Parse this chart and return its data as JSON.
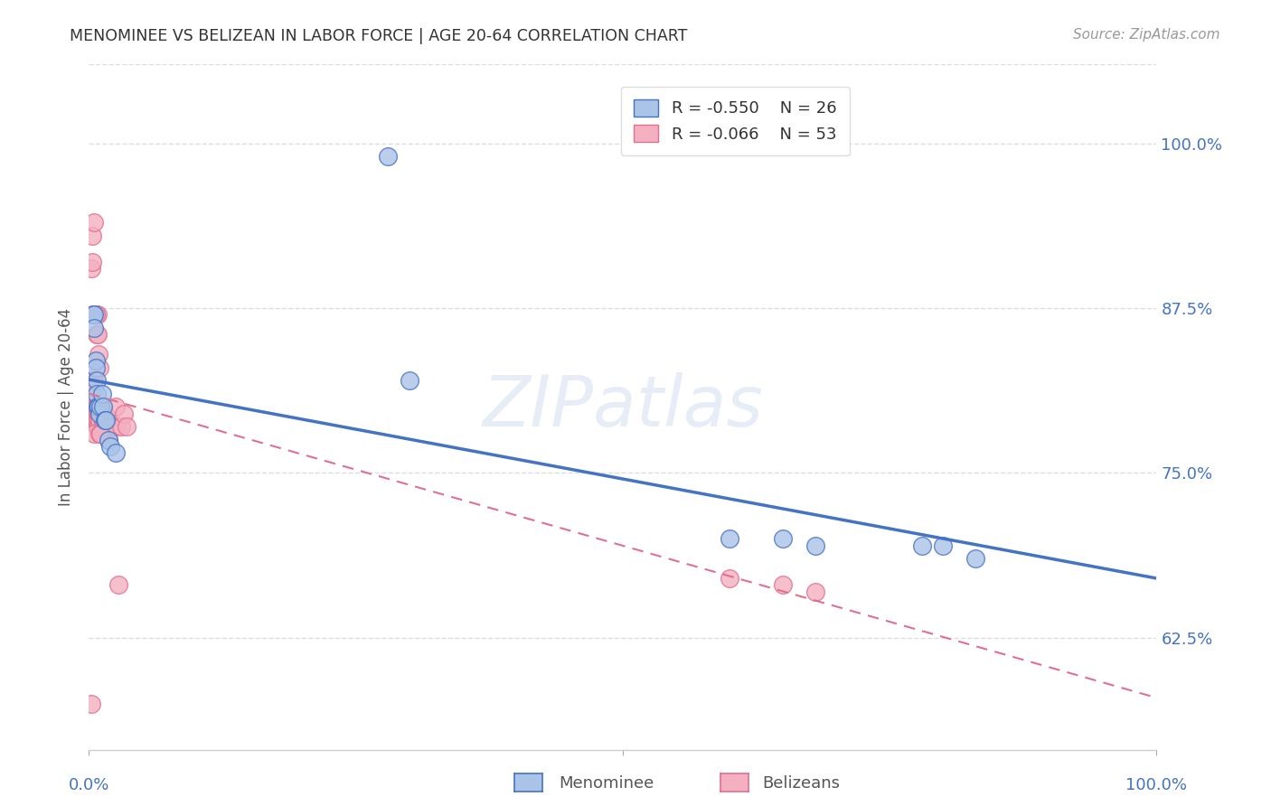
{
  "title": "MENOMINEE VS BELIZEAN IN LABOR FORCE | AGE 20-64 CORRELATION CHART",
  "source": "Source: ZipAtlas.com",
  "ylabel": "In Labor Force | Age 20-64",
  "ytick_labels": [
    "100.0%",
    "87.5%",
    "75.0%",
    "62.5%"
  ],
  "ytick_values": [
    1.0,
    0.875,
    0.75,
    0.625
  ],
  "xlim": [
    0.0,
    1.0
  ],
  "ylim": [
    0.54,
    1.06
  ],
  "menominee_color": "#aac4e8",
  "belizean_color": "#f4b0c0",
  "menominee_line_color": "#4472c4",
  "belizean_line_color": "#e07090",
  "legend_R_menominee": "R = -0.550",
  "legend_N_menominee": "N = 26",
  "legend_R_belizean": "R = -0.066",
  "legend_N_belizean": "N = 53",
  "menominee_x": [
    0.004,
    0.005,
    0.005,
    0.006,
    0.006,
    0.007,
    0.007,
    0.008,
    0.009,
    0.01,
    0.011,
    0.012,
    0.013,
    0.015,
    0.016,
    0.018,
    0.02,
    0.025,
    0.6,
    0.65,
    0.68,
    0.78,
    0.8,
    0.83,
    0.28,
    0.3
  ],
  "menominee_y": [
    0.87,
    0.87,
    0.86,
    0.835,
    0.83,
    0.82,
    0.81,
    0.8,
    0.8,
    0.795,
    0.8,
    0.81,
    0.8,
    0.79,
    0.79,
    0.775,
    0.77,
    0.765,
    0.7,
    0.7,
    0.695,
    0.695,
    0.695,
    0.685,
    0.99,
    0.82
  ],
  "belizean_x": [
    0.002,
    0.003,
    0.003,
    0.004,
    0.004,
    0.005,
    0.005,
    0.005,
    0.006,
    0.006,
    0.006,
    0.007,
    0.007,
    0.007,
    0.008,
    0.008,
    0.008,
    0.009,
    0.009,
    0.01,
    0.01,
    0.011,
    0.012,
    0.013,
    0.015,
    0.016,
    0.018,
    0.02,
    0.022,
    0.025,
    0.026,
    0.03,
    0.033,
    0.035,
    0.003,
    0.004,
    0.005,
    0.006,
    0.007,
    0.008,
    0.009,
    0.01,
    0.011,
    0.6,
    0.65,
    0.68,
    0.005,
    0.006,
    0.007,
    0.008,
    0.01,
    0.028,
    0.002
  ],
  "belizean_y": [
    0.905,
    0.93,
    0.82,
    0.82,
    0.815,
    0.82,
    0.8,
    0.815,
    0.8,
    0.795,
    0.79,
    0.8,
    0.795,
    0.785,
    0.795,
    0.79,
    0.785,
    0.795,
    0.785,
    0.79,
    0.8,
    0.795,
    0.785,
    0.79,
    0.795,
    0.79,
    0.775,
    0.79,
    0.785,
    0.8,
    0.785,
    0.785,
    0.795,
    0.785,
    0.91,
    0.87,
    0.78,
    0.87,
    0.8,
    0.87,
    0.84,
    0.78,
    0.78,
    0.67,
    0.665,
    0.66,
    0.94,
    0.87,
    0.855,
    0.855,
    0.83,
    0.665,
    0.575
  ],
  "watermark": "ZIPatlas",
  "background_color": "#ffffff",
  "grid_color": "#dddddd",
  "menominee_R": -0.55,
  "belizean_R": -0.066,
  "line_xlim": [
    0.0,
    1.0
  ]
}
